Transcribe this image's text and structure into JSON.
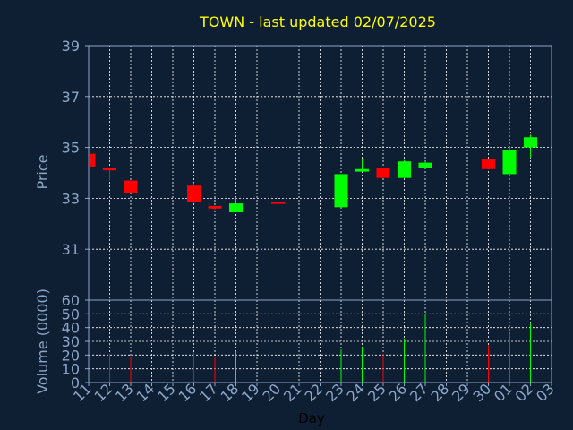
{
  "chart_data": {
    "type": "candlestick",
    "title": "TOWN - last updated 02/07/2025",
    "xlabel": "Day",
    "ylabel_price": "Price",
    "ylabel_volume": "Volume (0000)",
    "price_ylim": [
      29,
      39
    ],
    "price_yticks": [
      "31",
      "33",
      "35",
      "37",
      "39"
    ],
    "volume_ylim": [
      0,
      60
    ],
    "volume_yticks": [
      "0",
      "10",
      "20",
      "30",
      "40",
      "50",
      "60"
    ],
    "grid": true,
    "colors": {
      "background": "#0f1f33",
      "up": "#00ff00",
      "down": "#ff0000",
      "title": "#ffff00",
      "axis_text": "#8ca6c8",
      "grid": "#ffffff"
    },
    "x_ticks": [
      {
        "label": "11",
        "index": 0
      },
      {
        "label": "12",
        "index": 1
      },
      {
        "label": "13",
        "index": 2
      },
      {
        "label": "14",
        "index": 3
      },
      {
        "label": "15",
        "index": 4
      },
      {
        "label": "16",
        "index": 5
      },
      {
        "label": "17",
        "index": 6
      },
      {
        "label": "18",
        "index": 7
      },
      {
        "label": "19",
        "index": 8
      },
      {
        "label": "20",
        "index": 9
      },
      {
        "label": "21",
        "index": 10
      },
      {
        "label": "22",
        "index": 11
      },
      {
        "label": "23",
        "index": 12
      },
      {
        "label": "24",
        "index": 13
      },
      {
        "label": "25",
        "index": 14
      },
      {
        "label": "26",
        "index": 15
      },
      {
        "label": "27",
        "index": 16
      },
      {
        "label": "28",
        "index": 17
      },
      {
        "label": "29",
        "index": 18
      },
      {
        "label": "30",
        "index": 19
      },
      {
        "label": "01",
        "index": 20
      },
      {
        "label": "02",
        "index": 21
      },
      {
        "label": "03",
        "index": 22
      }
    ],
    "candles": [
      {
        "day": "11",
        "index": 0,
        "open": 34.75,
        "high": 34.75,
        "low": 34.25,
        "close": 34.25
      },
      {
        "day": "12",
        "index": 1,
        "open": 34.2,
        "high": 34.2,
        "low": 33.7,
        "close": 34.1
      },
      {
        "day": "13",
        "index": 2,
        "open": 33.7,
        "high": 33.7,
        "low": 33.2,
        "close": 33.2
      },
      {
        "day": "16",
        "index": 5,
        "open": 33.5,
        "high": 33.6,
        "low": 32.8,
        "close": 32.85
      },
      {
        "day": "17",
        "index": 6,
        "open": 32.7,
        "high": 32.7,
        "low": 32.55,
        "close": 32.6
      },
      {
        "day": "18",
        "index": 7,
        "open": 32.45,
        "high": 33.05,
        "low": 32.45,
        "close": 32.8
      },
      {
        "day": "20",
        "index": 9,
        "open": 32.85,
        "high": 33.05,
        "low": 32.75,
        "close": 32.8
      },
      {
        "day": "23",
        "index": 12,
        "open": 32.65,
        "high": 33.95,
        "low": 32.65,
        "close": 33.95
      },
      {
        "day": "24",
        "index": 13,
        "open": 34.05,
        "high": 34.55,
        "low": 34.05,
        "close": 34.15
      },
      {
        "day": "25",
        "index": 14,
        "open": 34.2,
        "high": 34.2,
        "low": 33.8,
        "close": 33.8
      },
      {
        "day": "26",
        "index": 15,
        "open": 33.8,
        "high": 34.5,
        "low": 33.8,
        "close": 34.45
      },
      {
        "day": "27",
        "index": 16,
        "open": 34.2,
        "high": 34.45,
        "low": 34.2,
        "close": 34.4
      },
      {
        "day": "30",
        "index": 19,
        "open": 34.55,
        "high": 34.55,
        "low": 34.15,
        "close": 34.15
      },
      {
        "day": "01",
        "index": 20,
        "open": 33.95,
        "high": 35.0,
        "low": 33.95,
        "close": 34.9
      },
      {
        "day": "02",
        "index": 21,
        "open": 35.0,
        "high": 35.5,
        "low": 34.6,
        "close": 35.4
      }
    ],
    "volume": [
      {
        "day": "12",
        "index": 1,
        "value": 21,
        "direction": "down"
      },
      {
        "day": "13",
        "index": 2,
        "value": 19,
        "direction": "down"
      },
      {
        "day": "16",
        "index": 5,
        "value": 22,
        "direction": "down"
      },
      {
        "day": "17",
        "index": 6,
        "value": 19,
        "direction": "down"
      },
      {
        "day": "18",
        "index": 7,
        "value": 23,
        "direction": "up"
      },
      {
        "day": "20",
        "index": 9,
        "value": 47,
        "direction": "down"
      },
      {
        "day": "23",
        "index": 12,
        "value": 24,
        "direction": "up"
      },
      {
        "day": "24",
        "index": 13,
        "value": 26,
        "direction": "up"
      },
      {
        "day": "25",
        "index": 14,
        "value": 21,
        "direction": "down"
      },
      {
        "day": "26",
        "index": 15,
        "value": 32,
        "direction": "up"
      },
      {
        "day": "27",
        "index": 16,
        "value": 50,
        "direction": "up"
      },
      {
        "day": "30",
        "index": 19,
        "value": 27,
        "direction": "down"
      },
      {
        "day": "01",
        "index": 20,
        "value": 35,
        "direction": "up"
      },
      {
        "day": "02",
        "index": 21,
        "value": 43,
        "direction": "up"
      }
    ]
  }
}
